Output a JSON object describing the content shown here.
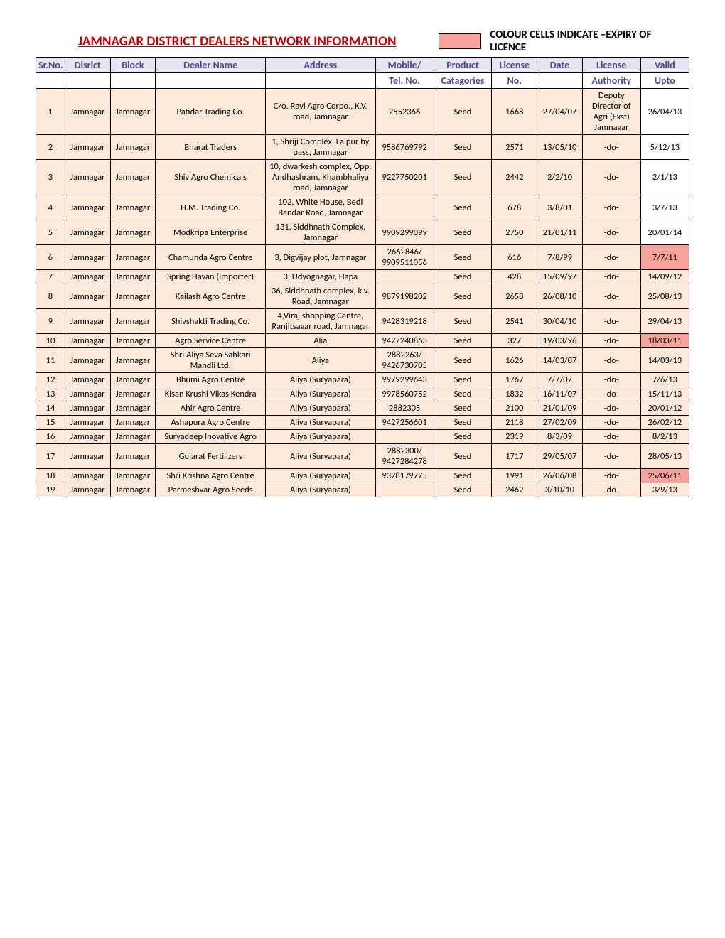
{
  "title": "JAMNAGAR   DISTRICT DEALERS NETWORK INFORMATION",
  "legend_text": "COLOUR CELLS INDICATE –EXPIRY OF LICENCE",
  "headers1": [
    "Sr.No.",
    "Disrict",
    "Block",
    "Dealer Name",
    "Address",
    "Mobile/",
    "Product",
    "License",
    "Date",
    "License",
    "Valid"
  ],
  "headers2": [
    "",
    "",
    "",
    "",
    "",
    "Tel. No.",
    "Catagories",
    "No.",
    "",
    "Authority",
    "Upto"
  ],
  "rows": [
    {
      "sr": "1",
      "dist": "Jamnagar",
      "block": "Jamnagar",
      "dealer": "Patidar Trading Co.",
      "addr": "C/o. Ravi Agro Corpo., K.V. road, Jamnagar",
      "mob": "2552366",
      "prod": "Seed",
      "lic": "1668",
      "date": "27/04/07",
      "auth": "Deputy Director of Agri (Exst) Jamnagar",
      "valid": "26/04/13",
      "valid_white": true
    },
    {
      "sr": "2",
      "dist": "Jamnagar",
      "block": "Jamnagar",
      "dealer": "Bharat Traders",
      "addr": "1, Shriji Complex, Lalpur by pass, Jamnagar",
      "mob": "9586769792",
      "prod": "Seed",
      "lic": "2571",
      "date": "13/05/10",
      "auth": "-do-",
      "valid": "5/12/13",
      "valid_white": true
    },
    {
      "sr": "3",
      "dist": "Jamnagar",
      "block": "Jamnagar",
      "dealer": "Shiv Agro Chemicals",
      "addr": "10, dwarkesh complex, Opp. Andhashram, Khambhaliya road, Jamnagar",
      "mob": "9227750201",
      "prod": "Seed",
      "lic": "2442",
      "date": "2/2/10",
      "auth": "-do-",
      "valid": "2/1/13",
      "valid_white": true
    },
    {
      "sr": "4",
      "dist": "Jamnagar",
      "block": "Jamnagar",
      "dealer": "H.M. Trading Co.",
      "addr": "102, White House, Bedi Bandar Road, Jamnagar",
      "mob": "",
      "prod": "Seed",
      "lic": "678",
      "date": "3/8/01",
      "auth": "-do-",
      "valid": "3/7/13",
      "valid_white": true
    },
    {
      "sr": "5",
      "dist": "Jamnagar",
      "block": "Jamnagar",
      "dealer": "Modkripa Enterprise",
      "addr": "131, Siddhnath Complex, Jamnagar",
      "mob": "9909299099",
      "prod": "Seed",
      "lic": "2750",
      "date": "21/01/11",
      "auth": "-do-",
      "valid": "20/01/14",
      "valid_white": true
    },
    {
      "sr": "6",
      "dist": "Jamnagar",
      "block": "Jamnagar",
      "dealer": "Chamunda Agro Centre",
      "addr": "3, Digvijay plot, Jamnagar",
      "mob": "2662846/ 9909511056",
      "prod": "Seed",
      "lic": "616",
      "date": "7/8/99",
      "auth": "-do-",
      "valid": "7/7/11",
      "expired": true
    },
    {
      "sr": "7",
      "dist": "Jamnagar",
      "block": "Jamnagar",
      "dealer": "Spring Havan (Importer)",
      "addr": "3, Udyognagar, Hapa",
      "mob": "",
      "prod": "Seed",
      "lic": "428",
      "date": "15/09/97",
      "auth": "-do-",
      "valid": "14/09/12"
    },
    {
      "sr": "8",
      "dist": "Jamnagar",
      "block": "Jamnagar",
      "dealer": "Kailash Agro Centre",
      "addr": "36, Siddhnath complex, k.v. Road, Jamnagar",
      "mob": "9879198202",
      "prod": "Seed",
      "lic": "2658",
      "date": "26/08/10",
      "auth": "-do-",
      "valid": "25/08/13"
    },
    {
      "sr": "9",
      "dist": "Jamnagar",
      "block": "Jamnagar",
      "dealer": "Shivshakti Trading Co.",
      "addr": "4,Viraj shopping Centre, Ranjitsagar road, Jamnagar",
      "mob": "9428319218",
      "prod": "Seed",
      "lic": "2541",
      "date": "30/04/10",
      "auth": "-do-",
      "valid": "29/04/13"
    },
    {
      "sr": "10",
      "dist": "Jamnagar",
      "block": "Jamnagar",
      "dealer": "Agro Service Centre",
      "addr": "Alia",
      "mob": "9427240863",
      "prod": "Seed",
      "lic": "327",
      "date": "19/03/96",
      "auth": "-do-",
      "valid": "18/03/11",
      "expired": true
    },
    {
      "sr": "11",
      "dist": "Jamnagar",
      "block": "Jamnagar",
      "dealer": "Shri Aliya Seva Sahkari Mandli Ltd.",
      "addr": "Aliya",
      "mob": "2882263/ 9426730705",
      "prod": "Seed",
      "lic": "1626",
      "date": "14/03/07",
      "auth": "-do-",
      "valid": "14/03/13"
    },
    {
      "sr": "12",
      "dist": "Jamnagar",
      "block": "Jamnagar",
      "dealer": "Bhumi Agro Centre",
      "addr": "Aliya (Suryapara)",
      "mob": "9979299643",
      "prod": "Seed",
      "lic": "1767",
      "date": "7/7/07",
      "auth": "-do-",
      "valid": "7/6/13"
    },
    {
      "sr": "13",
      "dist": "Jamnagar",
      "block": "Jamnagar",
      "dealer": "Kisan Krushi Vikas Kendra",
      "addr": "Aliya (Suryapara)",
      "mob": "9978560752",
      "prod": "Seed",
      "lic": "1832",
      "date": "16/11/07",
      "auth": "-do-",
      "valid": "15/11/13"
    },
    {
      "sr": "14",
      "dist": "Jamnagar",
      "block": "Jamnagar",
      "dealer": "Ahir Agro Centre",
      "addr": "Aliya (Suryapara)",
      "mob": "2882305",
      "prod": "Seed",
      "lic": "2100",
      "date": "21/01/09",
      "auth": "-do-",
      "valid": "20/01/12"
    },
    {
      "sr": "15",
      "dist": "Jamnagar",
      "block": "Jamnagar",
      "dealer": "Ashapura Agro Centre",
      "addr": "Aliya (Suryapara)",
      "mob": "9427256601",
      "prod": "Seed",
      "lic": "2118",
      "date": "27/02/09",
      "auth": "-do-",
      "valid": "26/02/12"
    },
    {
      "sr": "16",
      "dist": "Jamnagar",
      "block": "Jamnagar",
      "dealer": "Suryadeep Inovative Agro",
      "addr": "Aliya (Suryapara)",
      "mob": "",
      "prod": "Seed",
      "lic": "2319",
      "date": "8/3/09",
      "auth": "-do-",
      "valid": "8/2/13"
    },
    {
      "sr": "17",
      "dist": "Jamnagar",
      "block": "Jamnagar",
      "dealer": "Gujarat Fertilizers",
      "addr": "Aliya (Suryapara)",
      "mob": "2882300/ 9427284278",
      "prod": "Seed",
      "lic": "1717",
      "date": "29/05/07",
      "auth": "-do-",
      "valid": "28/05/13"
    },
    {
      "sr": "18",
      "dist": "Jamnagar",
      "block": "Jamnagar",
      "dealer": "Shri Krishna Agro Centre",
      "addr": "Aliya (Suryapara)",
      "mob": "9328179775",
      "prod": "Seed",
      "lic": "1991",
      "date": "26/06/08",
      "auth": "-do-",
      "valid": "25/06/11",
      "expired": true
    },
    {
      "sr": "19",
      "dist": "Jamnagar",
      "block": "Jamnagar",
      "dealer": "Parmeshvar Agro Seeds",
      "addr": "Aliya (Suryapara)",
      "mob": "",
      "prod": "Seed",
      "lic": "2462",
      "date": "3/10/10",
      "auth": "-do-",
      "valid": "3/9/13"
    }
  ]
}
